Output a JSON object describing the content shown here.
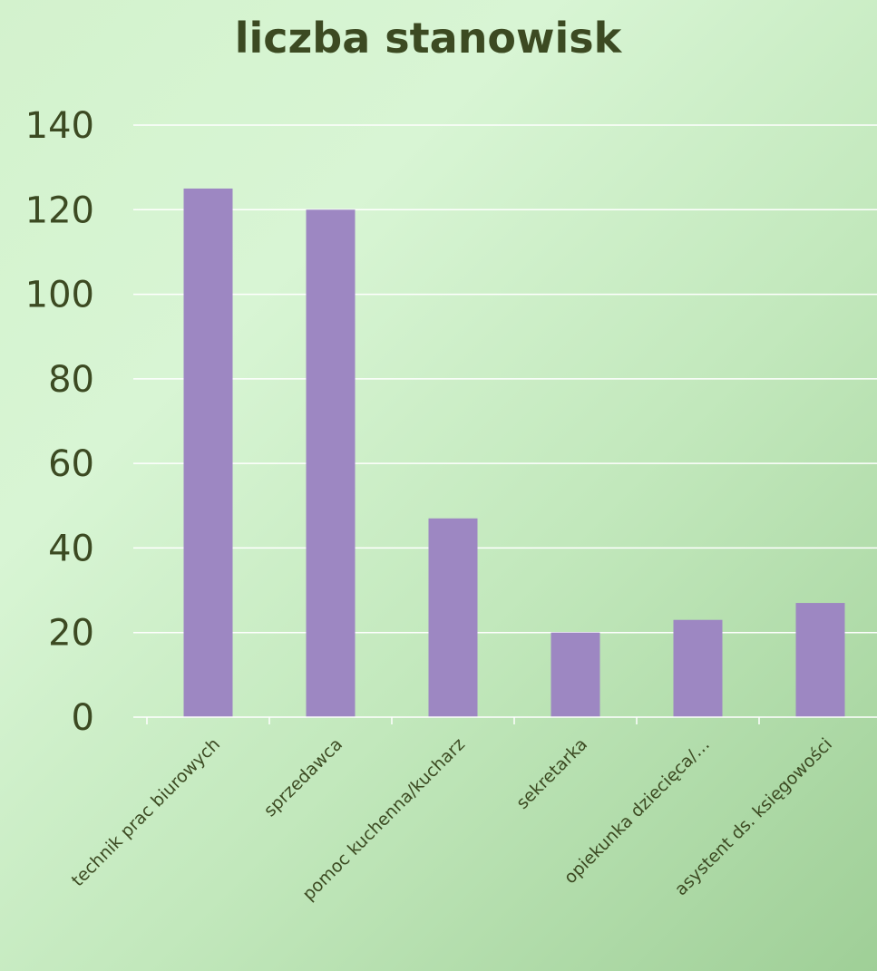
{
  "chart_data": {
    "type": "bar",
    "title": "liczba stanowisk",
    "categories": [
      "technik prac biurowych",
      "sprzedawca",
      "pomoc kuchenna/kucharz",
      "sekretarka",
      "opiekunka dziecięca/…",
      "asystent ds. księgowości"
    ],
    "values": [
      125,
      120,
      47,
      20,
      23,
      27
    ],
    "ylim": [
      0,
      140
    ],
    "yticks": [
      0,
      20,
      40,
      60,
      80,
      100,
      120,
      140
    ],
    "grid": true,
    "legend": "none",
    "colors": {
      "bar": "#9d87c2",
      "text": "#3c4a22",
      "grid": "#ffffff"
    }
  }
}
